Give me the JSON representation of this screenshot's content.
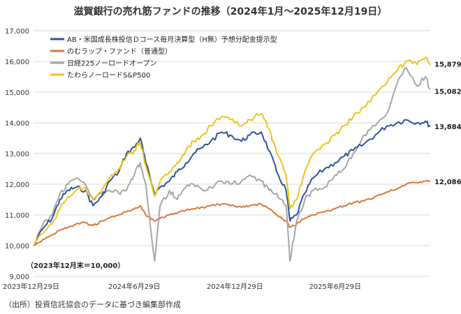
{
  "chart_data": {
    "type": "line",
    "title": "滋賀銀行の売れ筋ファンドの推移（2024年1月〜2025年12月19日）",
    "source_note": "（出所）投資信託協会のデータに基づき編集部作成",
    "base_note": "（2023年12月末＝10,000）",
    "x_range": [
      "2023-12-29",
      "2025-12-19"
    ],
    "x_ticks": [
      {
        "date": "2023-12-29",
        "label": "2023年12月29日"
      },
      {
        "date": "2024-06-29",
        "label": "2024年6月29日"
      },
      {
        "date": "2024-12-29",
        "label": "2024年12月29日"
      },
      {
        "date": "2025-06-29",
        "label": "2025年6月29日"
      }
    ],
    "ylim": [
      9000,
      17000
    ],
    "y_ticks": [
      9000,
      10000,
      11000,
      12000,
      13000,
      14000,
      15000,
      16000,
      17000
    ],
    "y_tick_labels": [
      "9,000",
      "10,000",
      "11,000",
      "12,000",
      "13,000",
      "14,000",
      "15,000",
      "16,000",
      "17,000"
    ],
    "grid": true,
    "legend_position": "top-left",
    "series": [
      {
        "name": "AB・米国成長株投信Ｄコース毎月決算型（H無）予想分配金提示型",
        "color": "#2e5597",
        "end_label": "13,884",
        "points": [
          [
            "2023-12-29",
            10000
          ],
          [
            "2024-01-15",
            10550
          ],
          [
            "2024-02-01",
            10900
          ],
          [
            "2024-02-15",
            11500
          ],
          [
            "2024-03-01",
            11800
          ],
          [
            "2024-03-15",
            11900
          ],
          [
            "2024-04-01",
            11800
          ],
          [
            "2024-04-15",
            11300
          ],
          [
            "2024-05-01",
            11600
          ],
          [
            "2024-05-15",
            12100
          ],
          [
            "2024-06-01",
            12400
          ],
          [
            "2024-06-15",
            13000
          ],
          [
            "2024-06-29",
            13200
          ],
          [
            "2024-07-10",
            13500
          ],
          [
            "2024-07-20",
            12700
          ],
          [
            "2024-08-05",
            11700
          ],
          [
            "2024-08-15",
            11900
          ],
          [
            "2024-09-01",
            12100
          ],
          [
            "2024-09-15",
            12400
          ],
          [
            "2024-10-01",
            12700
          ],
          [
            "2024-10-15",
            13000
          ],
          [
            "2024-11-01",
            13200
          ],
          [
            "2024-11-15",
            13400
          ],
          [
            "2024-12-05",
            13700
          ],
          [
            "2024-12-20",
            13600
          ],
          [
            "2025-01-10",
            13400
          ],
          [
            "2025-01-25",
            13600
          ],
          [
            "2025-02-15",
            13700
          ],
          [
            "2025-03-01",
            13100
          ],
          [
            "2025-03-15",
            12400
          ],
          [
            "2025-04-01",
            11800
          ],
          [
            "2025-04-08",
            10800
          ],
          [
            "2025-04-20",
            11000
          ],
          [
            "2025-05-05",
            11700
          ],
          [
            "2025-05-20",
            12200
          ],
          [
            "2025-06-10",
            12500
          ],
          [
            "2025-06-29",
            12700
          ],
          [
            "2025-07-15",
            12900
          ],
          [
            "2025-08-01",
            13100
          ],
          [
            "2025-08-20",
            13300
          ],
          [
            "2025-09-10",
            13600
          ],
          [
            "2025-10-01",
            13900
          ],
          [
            "2025-10-20",
            14000
          ],
          [
            "2025-11-05",
            14100
          ],
          [
            "2025-11-25",
            14000
          ],
          [
            "2025-12-10",
            14050
          ],
          [
            "2025-12-19",
            13884
          ]
        ]
      },
      {
        "name": "のむラップ・ファンド（普通型）",
        "color": "#d9783b",
        "end_label": "12,086",
        "points": [
          [
            "2023-12-29",
            10000
          ],
          [
            "2024-01-15",
            10200
          ],
          [
            "2024-02-01",
            10350
          ],
          [
            "2024-02-15",
            10500
          ],
          [
            "2024-03-01",
            10600
          ],
          [
            "2024-03-15",
            10700
          ],
          [
            "2024-04-01",
            10750
          ],
          [
            "2024-04-15",
            10650
          ],
          [
            "2024-05-01",
            10800
          ],
          [
            "2024-05-15",
            10900
          ],
          [
            "2024-06-01",
            11000
          ],
          [
            "2024-06-15",
            11100
          ],
          [
            "2024-06-29",
            11200
          ],
          [
            "2024-07-10",
            11300
          ],
          [
            "2024-07-20",
            11000
          ],
          [
            "2024-08-05",
            10800
          ],
          [
            "2024-08-15",
            10900
          ],
          [
            "2024-09-01",
            11000
          ],
          [
            "2024-09-15",
            11050
          ],
          [
            "2024-10-01",
            11150
          ],
          [
            "2024-10-15",
            11200
          ],
          [
            "2024-11-01",
            11250
          ],
          [
            "2024-11-15",
            11300
          ],
          [
            "2024-12-05",
            11350
          ],
          [
            "2024-12-20",
            11300
          ],
          [
            "2025-01-10",
            11250
          ],
          [
            "2025-01-25",
            11300
          ],
          [
            "2025-02-15",
            11350
          ],
          [
            "2025-03-01",
            11200
          ],
          [
            "2025-03-15",
            11000
          ],
          [
            "2025-04-01",
            10800
          ],
          [
            "2025-04-08",
            10600
          ],
          [
            "2025-04-20",
            10700
          ],
          [
            "2025-05-05",
            10900
          ],
          [
            "2025-05-20",
            11000
          ],
          [
            "2025-06-10",
            11100
          ],
          [
            "2025-06-29",
            11200
          ],
          [
            "2025-07-15",
            11300
          ],
          [
            "2025-08-01",
            11400
          ],
          [
            "2025-08-20",
            11450
          ],
          [
            "2025-09-10",
            11600
          ],
          [
            "2025-10-01",
            11750
          ],
          [
            "2025-10-20",
            11850
          ],
          [
            "2025-11-05",
            12000
          ],
          [
            "2025-11-25",
            12050
          ],
          [
            "2025-12-10",
            12100
          ],
          [
            "2025-12-19",
            12086
          ]
        ]
      },
      {
        "name": "日経225ノーロードオープン",
        "color": "#a6a6a6",
        "end_label": "15,082",
        "points": [
          [
            "2023-12-29",
            10000
          ],
          [
            "2024-01-15",
            10700
          ],
          [
            "2024-02-01",
            11000
          ],
          [
            "2024-02-15",
            11700
          ],
          [
            "2024-03-01",
            12000
          ],
          [
            "2024-03-15",
            12200
          ],
          [
            "2024-04-01",
            12000
          ],
          [
            "2024-04-15",
            11500
          ],
          [
            "2024-05-01",
            11700
          ],
          [
            "2024-05-15",
            11800
          ],
          [
            "2024-06-01",
            11700
          ],
          [
            "2024-06-15",
            11800
          ],
          [
            "2024-06-29",
            12300
          ],
          [
            "2024-07-10",
            12700
          ],
          [
            "2024-07-20",
            12000
          ],
          [
            "2024-08-05",
            9500
          ],
          [
            "2024-08-15",
            11300
          ],
          [
            "2024-09-01",
            11800
          ],
          [
            "2024-09-15",
            11500
          ],
          [
            "2024-10-01",
            11900
          ],
          [
            "2024-10-15",
            12000
          ],
          [
            "2024-11-01",
            11800
          ],
          [
            "2024-11-15",
            11900
          ],
          [
            "2024-12-05",
            12100
          ],
          [
            "2024-12-20",
            12000
          ],
          [
            "2025-01-10",
            12100
          ],
          [
            "2025-01-25",
            12300
          ],
          [
            "2025-02-15",
            12100
          ],
          [
            "2025-03-01",
            11800
          ],
          [
            "2025-03-15",
            11700
          ],
          [
            "2025-04-01",
            11300
          ],
          [
            "2025-04-08",
            9500
          ],
          [
            "2025-04-20",
            10800
          ],
          [
            "2025-05-05",
            11500
          ],
          [
            "2025-05-20",
            11800
          ],
          [
            "2025-06-10",
            11900
          ],
          [
            "2025-06-29",
            12300
          ],
          [
            "2025-07-15",
            12500
          ],
          [
            "2025-08-01",
            13000
          ],
          [
            "2025-08-20",
            13600
          ],
          [
            "2025-09-10",
            13900
          ],
          [
            "2025-10-01",
            14300
          ],
          [
            "2025-10-20",
            15300
          ],
          [
            "2025-11-05",
            15800
          ],
          [
            "2025-11-25",
            15200
          ],
          [
            "2025-12-10",
            15500
          ],
          [
            "2025-12-19",
            15082
          ]
        ]
      },
      {
        "name": "たわらノーロードS&P500",
        "color": "#f0c419",
        "end_label": "15,879",
        "points": [
          [
            "2023-12-29",
            10000
          ],
          [
            "2024-01-15",
            10400
          ],
          [
            "2024-02-01",
            10700
          ],
          [
            "2024-02-15",
            11200
          ],
          [
            "2024-03-01",
            11600
          ],
          [
            "2024-03-15",
            11800
          ],
          [
            "2024-04-01",
            11900
          ],
          [
            "2024-04-15",
            11500
          ],
          [
            "2024-05-01",
            11800
          ],
          [
            "2024-05-15",
            12200
          ],
          [
            "2024-06-01",
            12500
          ],
          [
            "2024-06-15",
            12900
          ],
          [
            "2024-06-29",
            13100
          ],
          [
            "2024-07-10",
            13400
          ],
          [
            "2024-07-20",
            12600
          ],
          [
            "2024-08-05",
            11600
          ],
          [
            "2024-08-15",
            12100
          ],
          [
            "2024-09-01",
            12400
          ],
          [
            "2024-09-15",
            12700
          ],
          [
            "2024-10-01",
            13100
          ],
          [
            "2024-10-15",
            13400
          ],
          [
            "2024-11-01",
            13600
          ],
          [
            "2024-11-15",
            13900
          ],
          [
            "2024-12-05",
            14200
          ],
          [
            "2024-12-20",
            14100
          ],
          [
            "2025-01-10",
            13900
          ],
          [
            "2025-01-25",
            14100
          ],
          [
            "2025-02-15",
            14300
          ],
          [
            "2025-03-01",
            13800
          ],
          [
            "2025-03-15",
            13000
          ],
          [
            "2025-04-01",
            12300
          ],
          [
            "2025-04-08",
            11200
          ],
          [
            "2025-04-20",
            11500
          ],
          [
            "2025-05-05",
            12400
          ],
          [
            "2025-05-20",
            13000
          ],
          [
            "2025-06-10",
            13300
          ],
          [
            "2025-06-29",
            13600
          ],
          [
            "2025-07-15",
            13900
          ],
          [
            "2025-08-01",
            14200
          ],
          [
            "2025-08-20",
            14500
          ],
          [
            "2025-09-10",
            14900
          ],
          [
            "2025-10-01",
            15300
          ],
          [
            "2025-10-20",
            15700
          ],
          [
            "2025-11-05",
            16000
          ],
          [
            "2025-11-25",
            15900
          ],
          [
            "2025-12-10",
            16100
          ],
          [
            "2025-12-19",
            15879
          ]
        ]
      }
    ]
  }
}
